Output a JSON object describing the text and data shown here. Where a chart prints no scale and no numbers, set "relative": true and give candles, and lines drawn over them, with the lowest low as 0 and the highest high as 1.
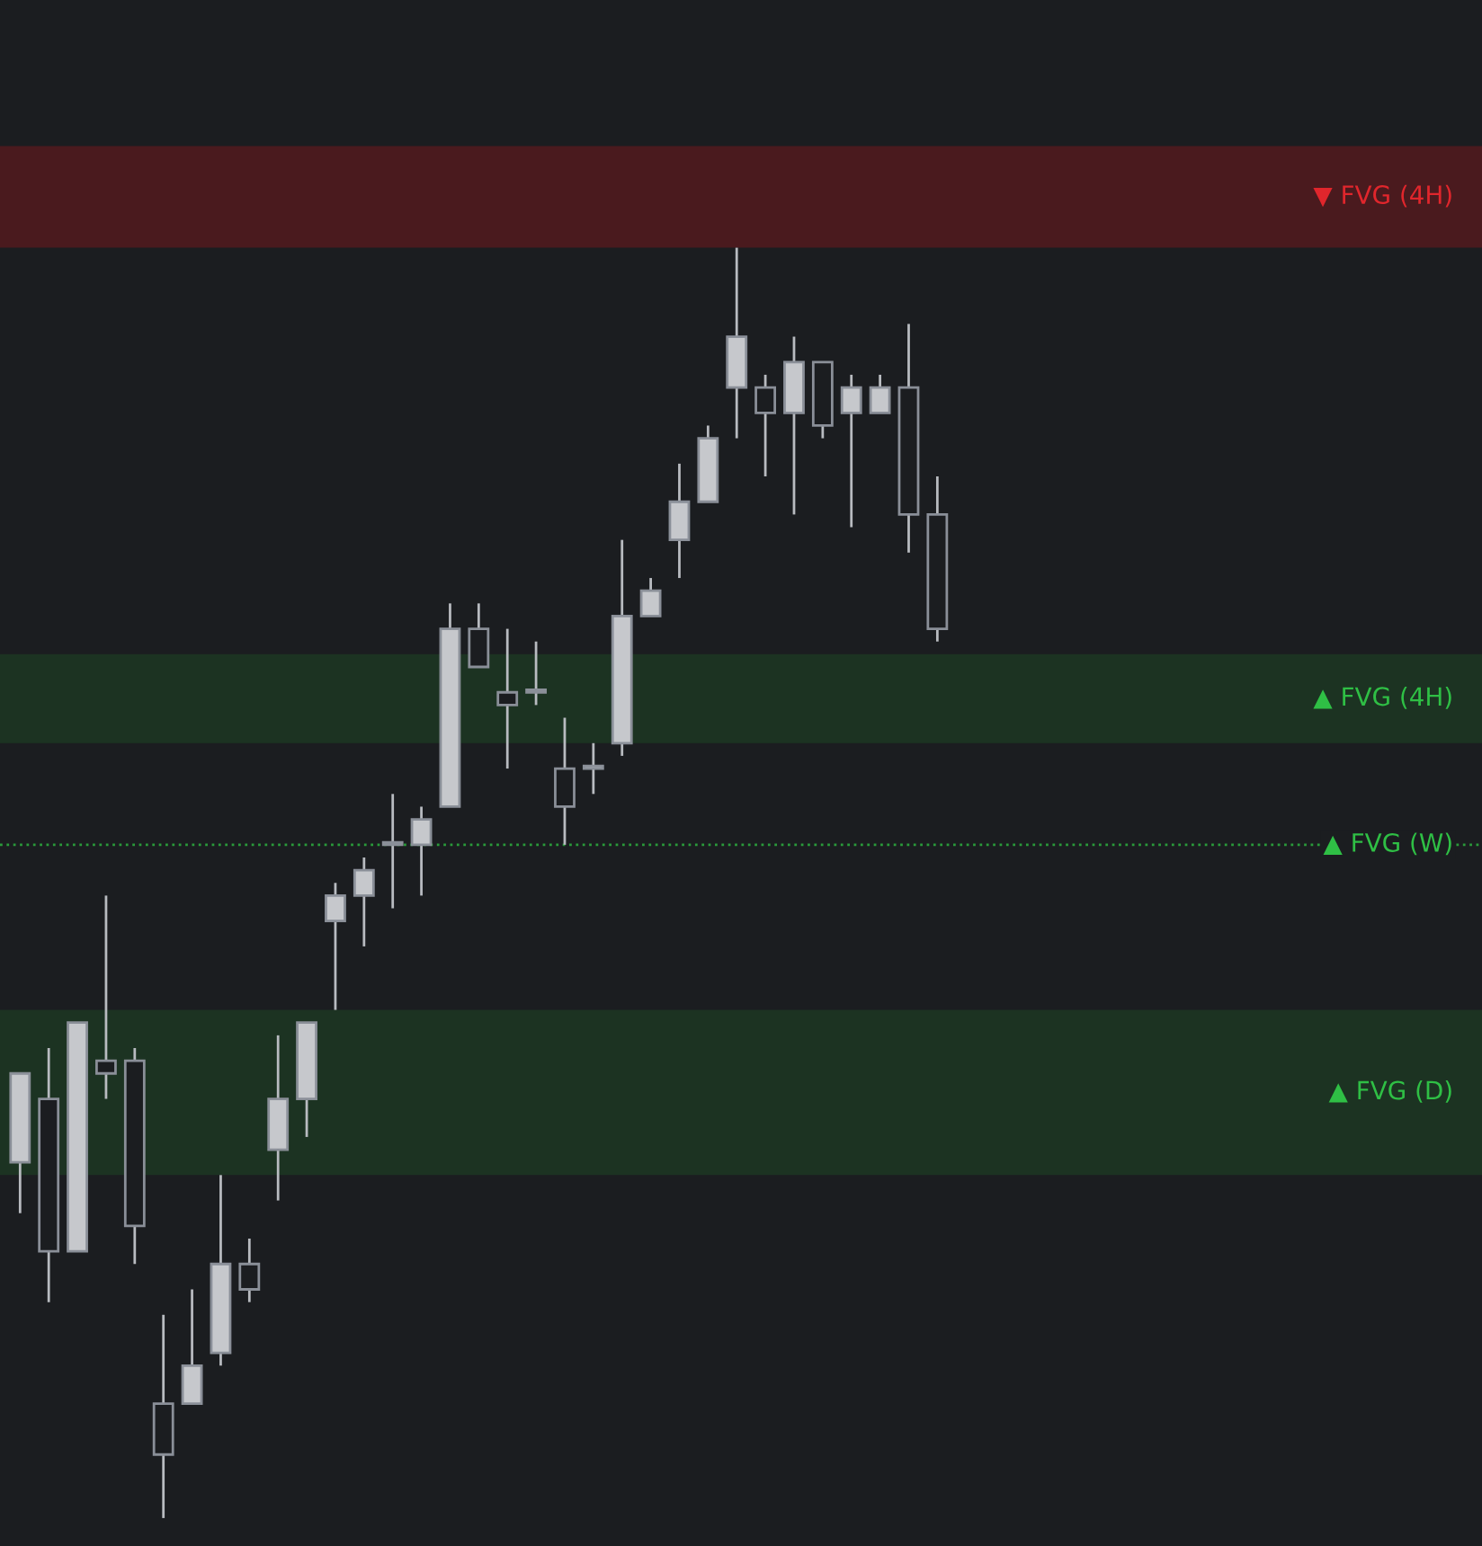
{
  "chart_data": {
    "type": "candlestick",
    "relative": true,
    "categories": [
      null,
      null,
      null,
      null,
      null,
      null,
      null,
      null,
      null,
      null,
      null,
      null,
      null,
      null,
      null,
      null,
      null,
      null,
      null,
      null,
      null,
      null,
      null,
      null,
      null,
      null,
      null,
      null,
      null,
      null,
      null,
      null,
      null
    ],
    "ohlc": [
      [
        0.28,
        0.35,
        0.24,
        0.35
      ],
      [
        0.33,
        0.37,
        0.17,
        0.21
      ],
      [
        0.21,
        0.39,
        0.21,
        0.39
      ],
      [
        0.36,
        0.49,
        0.33,
        0.35
      ],
      [
        0.36,
        0.37,
        0.2,
        0.23
      ],
      [
        0.09,
        0.16,
        0,
        0.05
      ],
      [
        0.09,
        0.18,
        0.09,
        0.12
      ],
      [
        0.13,
        0.27,
        0.12,
        0.2
      ],
      [
        0.2,
        0.22,
        0.17,
        0.18
      ],
      [
        0.29,
        0.38,
        0.25,
        0.33
      ],
      [
        0.33,
        0.39,
        0.3,
        0.39
      ],
      [
        0.47,
        0.5,
        0.4,
        0.49
      ],
      [
        0.49,
        0.52,
        0.45,
        0.51
      ],
      [
        0.53,
        0.57,
        0.48,
        0.53
      ],
      [
        0.53,
        0.56,
        0.49,
        0.55
      ],
      [
        0.56,
        0.72,
        0.56,
        0.7
      ],
      [
        0.7,
        0.72,
        0.67,
        0.67
      ],
      [
        0.65,
        0.7,
        0.59,
        0.64
      ],
      [
        0.65,
        0.69,
        0.64,
        0.65
      ],
      [
        0.59,
        0.63,
        0.53,
        0.56
      ],
      [
        0.59,
        0.61,
        0.57,
        0.59
      ],
      [
        0.61,
        0.77,
        0.6,
        0.71
      ],
      [
        0.71,
        0.74,
        0.71,
        0.73
      ],
      [
        0.77,
        0.83,
        0.74,
        0.8
      ],
      [
        0.8,
        0.86,
        0.8,
        0.85
      ],
      [
        0.89,
        1,
        0.85,
        0.93
      ],
      [
        0.89,
        0.9,
        0.82,
        0.87
      ],
      [
        0.87,
        0.93,
        0.79,
        0.91
      ],
      [
        0.91,
        0.91,
        0.85,
        0.86
      ],
      [
        0.87,
        0.9,
        0.78,
        0.89
      ],
      [
        0.87,
        0.9,
        0.87,
        0.89
      ],
      [
        0.89,
        0.94,
        0.76,
        0.79
      ],
      [
        0.79,
        0.82,
        0.69,
        0.7
      ]
    ],
    "bands": [
      {
        "axis": "y",
        "from": 1.0,
        "to": 1.08,
        "label": "▼ FVG (4H)",
        "color": "#4a1a1e"
      },
      {
        "axis": "y",
        "from": 0.61,
        "to": 0.68,
        "label": "▲ FVG (4H)",
        "color": "#1c3322"
      },
      {
        "axis": "y",
        "from": 0.27,
        "to": 0.4,
        "label": "▲ FVG (D)",
        "color": "#1c3322"
      }
    ],
    "ref_lines": [
      {
        "axis": "y",
        "value": 0.53,
        "label": "▲ FVG (W)",
        "color": "#2a9a3a",
        "line_style": "dotted"
      }
    ]
  }
}
